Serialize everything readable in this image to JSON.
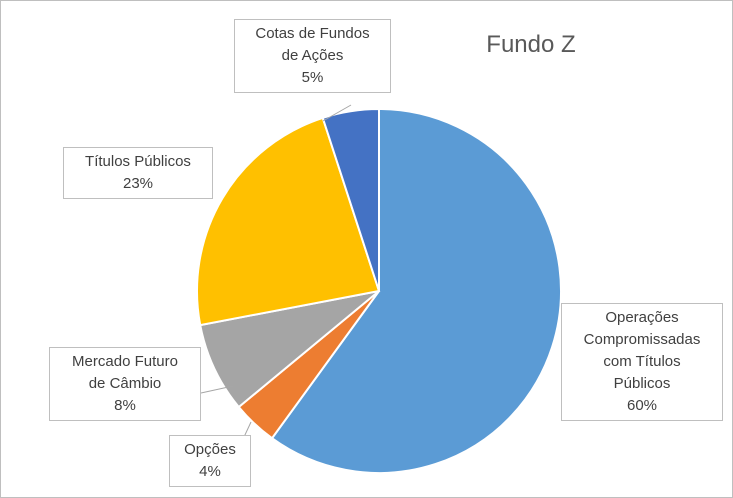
{
  "chart_data": {
    "type": "pie",
    "title": "Fundo Z",
    "categories": [
      "Operações Compromissadas com Títulos Públicos",
      "Opções",
      "Mercado Futuro de Câmbio",
      "Títulos Públicos",
      "Cotas de Fundos de Ações"
    ],
    "values": [
      60,
      4,
      8,
      23,
      5
    ],
    "value_labels": [
      "60%",
      "4%",
      "8%",
      "23%",
      "5%"
    ],
    "colors": [
      "#5b9bd5",
      "#ed7d31",
      "#a5a5a5",
      "#ffc000",
      "#4472c4"
    ]
  }
}
